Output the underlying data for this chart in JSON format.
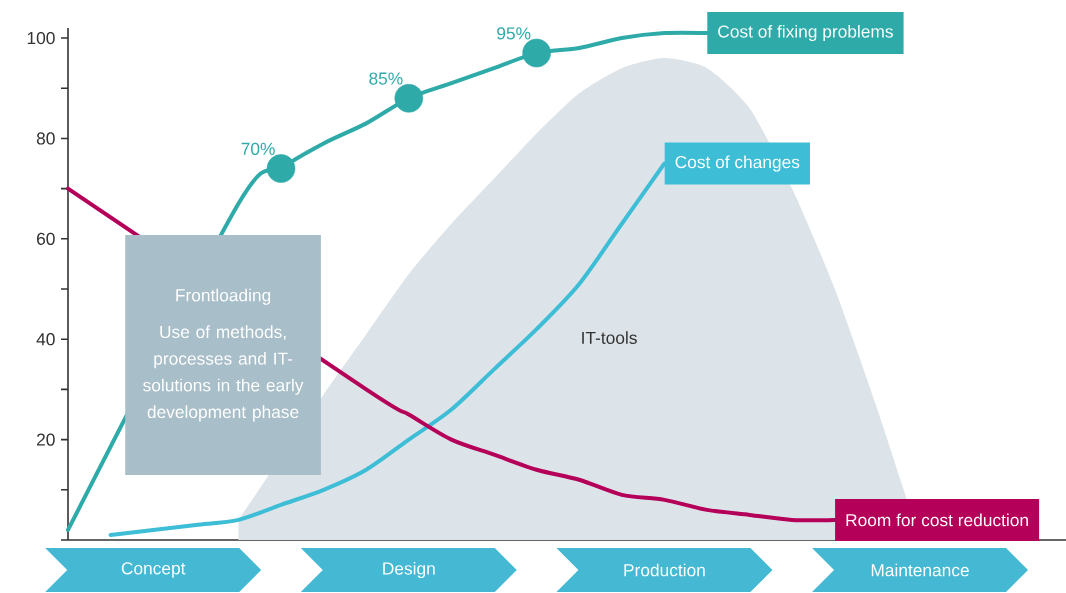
{
  "chart_data": {
    "type": "line",
    "categories": [
      null,
      null,
      "Concept",
      null,
      null,
      null,
      null,
      null,
      "Design",
      null,
      null,
      null,
      null,
      null,
      "Production",
      null,
      null,
      null,
      null,
      null,
      "Maintenance",
      null,
      null,
      null
    ],
    "series": [
      {
        "name": "IT-tools",
        "type": "area",
        "color": "#dde4e9",
        "values": [
          null,
          null,
          null,
          null,
          4,
          null,
          29,
          41,
          53,
          63,
          72,
          81,
          89,
          94,
          96,
          94,
          86,
          70,
          50,
          26,
          0,
          null,
          null,
          null
        ]
      },
      {
        "name": "Cost of fixing problems",
        "color": "#2eaaa9",
        "values": [
          2,
          null,
          null,
          null,
          67,
          74,
          79,
          83,
          88,
          91,
          94,
          97,
          98,
          100,
          101,
          101,
          null,
          null,
          null,
          null,
          null,
          null,
          null,
          null
        ]
      },
      {
        "type": "scatter",
        "marker": "circle",
        "color": "#2eaaa9",
        "values": [
          null,
          null,
          null,
          null,
          null,
          74,
          null,
          null,
          88,
          null,
          null,
          97,
          null,
          null,
          null,
          null,
          null,
          null,
          null,
          null,
          null,
          null,
          null,
          null
        ]
      },
      {
        "name": "Cost of changes",
        "color": "#3dbdd6",
        "values": [
          null,
          1,
          2,
          3,
          4,
          7,
          10,
          14,
          20,
          26,
          34,
          42,
          51,
          63,
          75,
          null,
          null,
          null,
          null,
          null,
          null,
          null,
          null,
          null
        ]
      },
      {
        "name": "Room for cost reduction",
        "color": "#b5005a",
        "values": [
          70,
          null,
          null,
          null,
          null,
          null,
          null,
          30,
          25,
          20,
          17,
          14,
          12,
          9,
          8,
          6,
          5,
          4,
          4,
          null,
          null,
          null,
          null,
          null
        ]
      }
    ],
    "ylim": [
      0,
      102
    ],
    "yticks": [
      {
        "value": 0,
        "label": null
      },
      {
        "value": 10,
        "label": null
      },
      20,
      {
        "value": 30,
        "label": null
      },
      40,
      {
        "value": 50,
        "label": null
      },
      60,
      {
        "value": 70,
        "label": null
      },
      80,
      {
        "value": 90,
        "label": null
      },
      100
    ],
    "line_style": "solid",
    "annotations": [
      "Frontloading",
      "Use of methods, processes and IT-solutions in the early development phase",
      "70%",
      "85%",
      "95%"
    ]
  }
}
